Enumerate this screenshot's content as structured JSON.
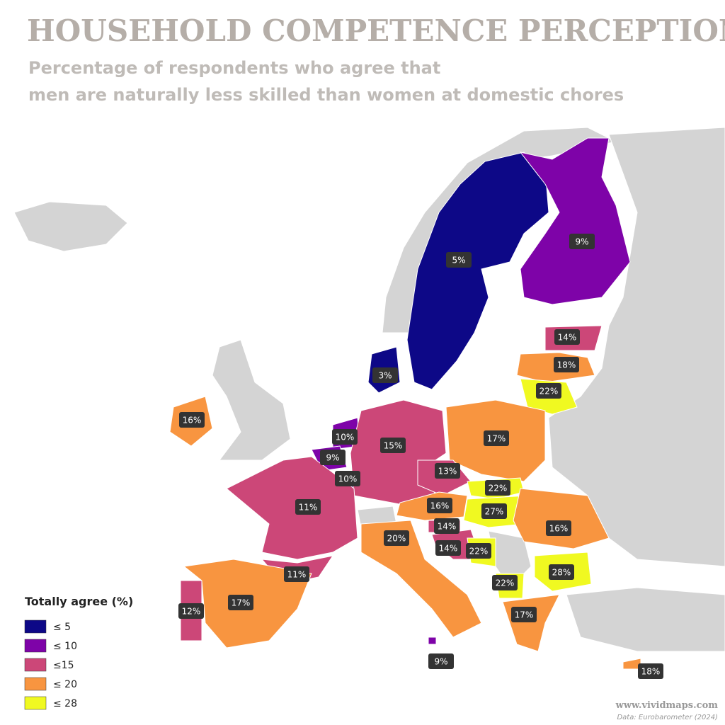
{
  "header": {
    "title": "HOUSEHOLD COMPETENCE PERCEPTIONS",
    "subtitle_lines": [
      "Percentage of respondents who agree that",
      "men are naturally less skilled than women at domestic chores"
    ]
  },
  "legend": {
    "title": "Totally agree (%)",
    "items": [
      {
        "value": 5,
        "label": "≤ 5",
        "color": "#0d0887"
      },
      {
        "value": 10,
        "label": "≤ 10",
        "color": "#7e03a8"
      },
      {
        "value": 15,
        "label": "≤15",
        "color": "#cc4778"
      },
      {
        "value": 20,
        "label": "≤ 20",
        "color": "#f89540"
      },
      {
        "value": 28,
        "label": "≤ 28",
        "color": "#f0f921"
      }
    ]
  },
  "regions": [
    {
      "value": 5,
      "label": "5%"
    },
    {
      "value": 9,
      "label": "9%"
    },
    {
      "value": 14,
      "label": "14%"
    },
    {
      "value": 18,
      "label": "18%"
    },
    {
      "value": 22,
      "label": "22%"
    },
    {
      "value": 3,
      "label": "3%"
    },
    {
      "value": 16,
      "label": "16%"
    },
    {
      "value": 10,
      "label": "10%"
    },
    {
      "value": 9,
      "label": "9%"
    },
    {
      "value": 10,
      "label": "10%"
    },
    {
      "value": 15,
      "label": "15%"
    },
    {
      "value": 17,
      "label": "17%"
    },
    {
      "value": 13,
      "label": "13%"
    },
    {
      "value": 22,
      "label": "22%"
    },
    {
      "value": 16,
      "label": "16%"
    },
    {
      "value": 27,
      "label": "27%"
    },
    {
      "value": 14,
      "label": "14%"
    },
    {
      "value": 14,
      "label": "14%"
    },
    {
      "value": 22,
      "label": "22%"
    },
    {
      "value": 16,
      "label": "16%"
    },
    {
      "value": 28,
      "label": "28%"
    },
    {
      "value": 22,
      "label": "22%"
    },
    {
      "value": 17,
      "label": "17%"
    },
    {
      "value": 20,
      "label": "20%"
    },
    {
      "value": 11,
      "label": "11%"
    },
    {
      "value": 11,
      "label": "11%"
    },
    {
      "value": 12,
      "label": "12%"
    },
    {
      "value": 17,
      "label": "17%"
    },
    {
      "value": 9,
      "label": "9%"
    },
    {
      "value": 18,
      "label": "18%"
    }
  ],
  "footer": {
    "site": "www.vividmaps.com",
    "source": "Data: Eurobarometer (2024)"
  }
}
